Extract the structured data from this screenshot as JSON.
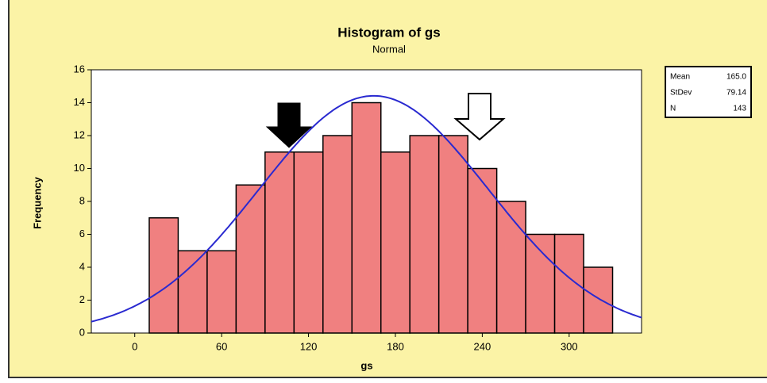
{
  "chart_data": {
    "type": "histogram",
    "title": "Histogram of gs",
    "subtitle": "Normal",
    "xlabel": "gs",
    "ylabel": "Frequency",
    "bins": [
      10,
      30,
      50,
      70,
      90,
      110,
      130,
      150,
      170,
      190,
      210,
      230,
      250,
      270,
      290,
      310,
      330
    ],
    "values": [
      7,
      5,
      5,
      9,
      11,
      11,
      12,
      14,
      11,
      12,
      12,
      10,
      8,
      6,
      6,
      4
    ],
    "color": "#f08080",
    "curve_color": "#2a2ad0",
    "xlim": [
      -30,
      350
    ],
    "xticks": [
      0,
      60,
      120,
      180,
      240,
      300
    ],
    "ylim": [
      0,
      16
    ],
    "yticks": [
      0,
      2,
      4,
      6,
      8,
      10,
      12,
      14,
      16
    ],
    "stats": [
      {
        "name": "Mean",
        "value": 165,
        "label": "165.0"
      },
      {
        "name": "StDev",
        "value": 79.14,
        "label": "79.14"
      },
      {
        "name": "N",
        "value": 143,
        "label": "143"
      }
    ]
  }
}
